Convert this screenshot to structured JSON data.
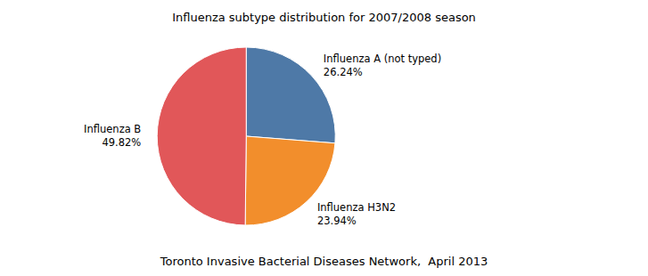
{
  "chart_data": {
    "type": "pie",
    "title": "Influenza subtype distribution for 2007/2008 season",
    "subtitle": "Toronto Invasive Bacterial Diseases Network,  April 2013",
    "categories": [
      "Influenza A (not typed)",
      "Influenza H3N2",
      "Influenza B"
    ],
    "values": [
      26.24,
      23.94,
      49.82
    ],
    "value_labels": [
      "26.24%",
      "23.94%",
      "49.82%"
    ],
    "data_labels": true
  }
}
